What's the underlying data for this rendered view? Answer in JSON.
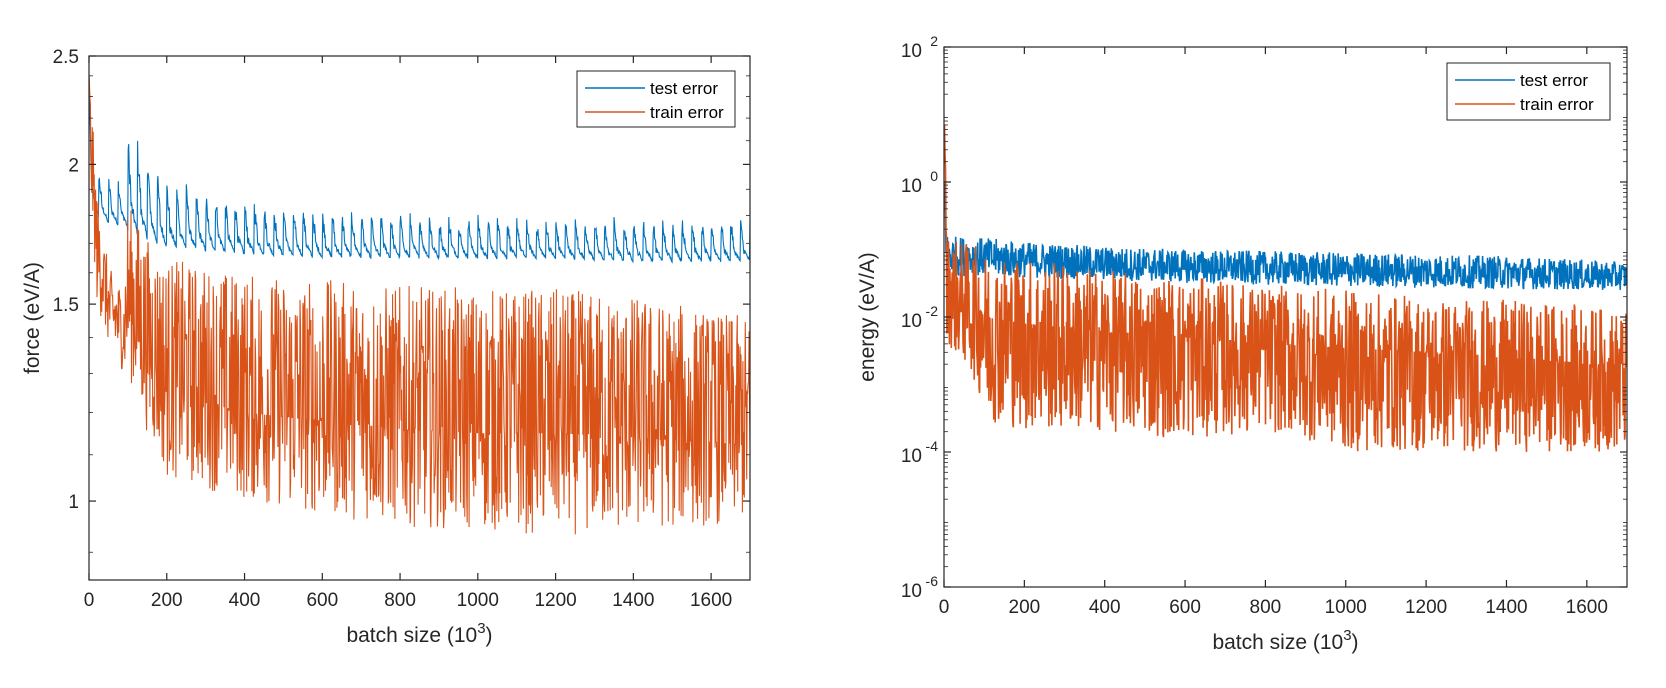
{
  "colors": {
    "test": "#0072BD",
    "train": "#D95319",
    "axis": "#262626"
  },
  "chart_data": [
    {
      "type": "line",
      "xlabel": "batch size (10",
      "xlabel_exp": "3",
      "xlabel_close": ")",
      "ylabel": "force (eV/A)",
      "x_scale": "linear",
      "y_scale": "log",
      "xlim": [
        0,
        1700
      ],
      "ylim": [
        0.85,
        2.5
      ],
      "x_ticks": [
        0,
        200,
        400,
        600,
        800,
        1000,
        1200,
        1400,
        1600
      ],
      "x_tick_labels": [
        "0",
        "200",
        "400",
        "600",
        "800",
        "1000",
        "1200",
        "1400",
        "1600"
      ],
      "y_ticks": [
        1,
        1.5,
        2,
        2.5
      ],
      "y_tick_labels": [
        "1",
        "1.5",
        "2",
        "2.5"
      ],
      "legend_position": "top-right",
      "grid": false,
      "series": [
        {
          "name": "test error",
          "x": [
            0,
            5,
            20,
            50,
            90,
            100,
            150,
            200,
            400,
            600,
            800,
            1000,
            1200,
            1400,
            1600,
            1700
          ],
          "y": [
            2.4,
            2.0,
            1.88,
            1.82,
            1.8,
            2.05,
            1.88,
            1.8,
            1.74,
            1.72,
            1.71,
            1.7,
            1.69,
            1.69,
            1.69,
            1.68
          ],
          "y_min": [
            2.4,
            1.85,
            1.78,
            1.75,
            1.74,
            1.7,
            1.68,
            1.66,
            1.64,
            1.63,
            1.63,
            1.63,
            1.63,
            1.62,
            1.62,
            1.62
          ],
          "y_max": [
            2.4,
            2.05,
            1.95,
            1.93,
            1.92,
            2.08,
            2.0,
            1.9,
            1.83,
            1.8,
            1.79,
            1.78,
            1.77,
            1.77,
            1.77,
            1.77
          ]
        },
        {
          "name": "train error",
          "x": [
            0,
            5,
            20,
            50,
            90,
            100,
            150,
            200,
            400,
            600,
            800,
            1000,
            1200,
            1400,
            1600,
            1700
          ],
          "y": [
            2.4,
            2.0,
            1.7,
            1.5,
            1.4,
            1.5,
            1.35,
            1.25,
            1.2,
            1.18,
            1.16,
            1.15,
            1.15,
            1.14,
            1.13,
            1.12
          ],
          "y_min": [
            2.4,
            1.85,
            1.5,
            1.38,
            1.3,
            1.3,
            1.15,
            1.05,
            1.0,
            0.97,
            0.95,
            0.94,
            0.93,
            0.94,
            0.95,
            0.96
          ],
          "y_max": [
            2.4,
            2.3,
            1.9,
            1.62,
            1.55,
            1.85,
            1.72,
            1.65,
            1.6,
            1.58,
            1.56,
            1.55,
            1.55,
            1.53,
            1.48,
            1.46
          ]
        }
      ]
    },
    {
      "type": "line",
      "xlabel": "batch size (10",
      "xlabel_exp": "3",
      "xlabel_close": ")",
      "ylabel": "energy (eV/A)",
      "x_scale": "linear",
      "y_scale": "log",
      "xlim": [
        0,
        1700
      ],
      "ylim": [
        1e-06,
        100
      ],
      "x_ticks": [
        0,
        200,
        400,
        600,
        800,
        1000,
        1200,
        1400,
        1600
      ],
      "x_tick_labels": [
        "0",
        "200",
        "400",
        "600",
        "800",
        "1000",
        "1200",
        "1400",
        "1600"
      ],
      "y_ticks": [
        1e-06,
        0.0001,
        0.01,
        1,
        100
      ],
      "y_tick_labels": [
        {
          "base": "10",
          "exp": "-6"
        },
        {
          "base": "10",
          "exp": "-4"
        },
        {
          "base": "10",
          "exp": "-2"
        },
        {
          "base": "10",
          "exp": "0"
        },
        {
          "base": "10",
          "exp": "2"
        }
      ],
      "legend_position": "top-right",
      "grid": false,
      "series": [
        {
          "name": "test error",
          "x": [
            0,
            5,
            20,
            100,
            200,
            400,
            600,
            800,
            1000,
            1200,
            1400,
            1600,
            1700
          ],
          "y": [
            1,
            0.1,
            0.08,
            0.07,
            0.065,
            0.055,
            0.05,
            0.045,
            0.043,
            0.04,
            0.038,
            0.037,
            0.036
          ],
          "y_min": [
            1,
            0.05,
            0.04,
            0.04,
            0.038,
            0.035,
            0.032,
            0.03,
            0.028,
            0.027,
            0.026,
            0.025,
            0.025
          ],
          "y_max": [
            1,
            0.18,
            0.16,
            0.15,
            0.13,
            0.11,
            0.1,
            0.095,
            0.09,
            0.085,
            0.08,
            0.07,
            0.065
          ]
        },
        {
          "name": "train error",
          "x": [
            0,
            5,
            20,
            100,
            200,
            400,
            600,
            800,
            1000,
            1200,
            1400,
            1600,
            1700
          ],
          "y": [
            5,
            0.05,
            0.03,
            0.01,
            0.008,
            0.006,
            0.005,
            0.004,
            0.0035,
            0.003,
            0.0025,
            0.002,
            0.002
          ],
          "y_min": [
            5,
            0.005,
            0.003,
            0.0003,
            0.0002,
            0.0002,
            0.00015,
            0.0002,
            0.0001,
            0.0001,
            0.0001,
            0.0001,
            0.0001
          ],
          "y_max": [
            10,
            0.2,
            0.15,
            0.1,
            0.08,
            0.05,
            0.04,
            0.03,
            0.025,
            0.02,
            0.018,
            0.015,
            0.012
          ]
        }
      ]
    }
  ]
}
